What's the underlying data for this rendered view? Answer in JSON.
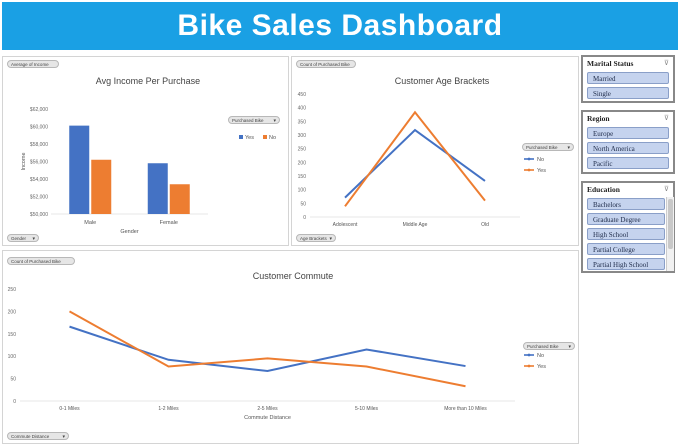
{
  "dashboard": {
    "title": "Bike Sales Dashboard"
  },
  "income_panel": {
    "filter_pill": "Average of Income",
    "series_pill": "Purchased Bike",
    "axis_pill": "Gender",
    "chart_data": {
      "type": "bar",
      "title": "Avg Income Per Purchase",
      "xlabel": "Gender",
      "ylabel": "Income",
      "categories": [
        "Male",
        "Female"
      ],
      "series": [
        {
          "name": "Yes",
          "color": "#4472c4",
          "values": [
            60100,
            55800
          ]
        },
        {
          "name": "No",
          "color": "#ed7d31",
          "values": [
            56200,
            53400
          ]
        }
      ],
      "ylim": [
        50000,
        62000
      ],
      "yticks": [
        "$50,000",
        "$52,000",
        "$54,000",
        "$56,000",
        "$58,000",
        "$60,000",
        "$62,000"
      ],
      "legend": "right"
    }
  },
  "age_panel": {
    "filter_pill": "Count of Purchased Bike",
    "series_pill": "Purchased Bike",
    "axis_pill": "Age Brackets",
    "chart_data": {
      "type": "line",
      "title": "Customer Age Brackets",
      "categories": [
        "Adolescent",
        "Middle Age",
        "Old"
      ],
      "series": [
        {
          "name": "No",
          "color": "#4472c4",
          "values": [
            71,
            318,
            132
          ]
        },
        {
          "name": "Yes",
          "color": "#ed7d31",
          "values": [
            39,
            383,
            60
          ]
        }
      ],
      "ylim": [
        0,
        450
      ],
      "yticks": [
        "0",
        "50",
        "100",
        "150",
        "200",
        "250",
        "300",
        "350",
        "400",
        "450"
      ],
      "legend": "right"
    }
  },
  "commute_panel": {
    "filter_pill": "Count of Purchased Bike",
    "series_pill": "Purchased Bike",
    "axis_pill": "Commute Distance",
    "chart_data": {
      "type": "line",
      "title": "Customer Commute",
      "xlabel": "Commute Distance",
      "categories": [
        "0-1 Miles",
        "1-2 Miles",
        "2-5 Miles",
        "5-10 Miles",
        "More than 10 Miles"
      ],
      "series": [
        {
          "name": "No",
          "color": "#4472c4",
          "values": [
            166,
            92,
            67,
            115,
            78
          ]
        },
        {
          "name": "Yes",
          "color": "#ed7d31",
          "values": [
            200,
            77,
            95,
            77,
            33
          ]
        }
      ],
      "ylim": [
        0,
        250
      ],
      "yticks": [
        "0",
        "50",
        "100",
        "150",
        "200",
        "250"
      ],
      "legend": "right"
    }
  },
  "slicers": {
    "marital": {
      "title": "Marital Status",
      "items": [
        "Married",
        "Single"
      ]
    },
    "region": {
      "title": "Region",
      "items": [
        "Europe",
        "North America",
        "Pacific"
      ]
    },
    "education": {
      "title": "Education",
      "items": [
        "Bachelors",
        "Graduate Degree",
        "High School",
        "Partial College",
        "Partial High School"
      ]
    }
  }
}
